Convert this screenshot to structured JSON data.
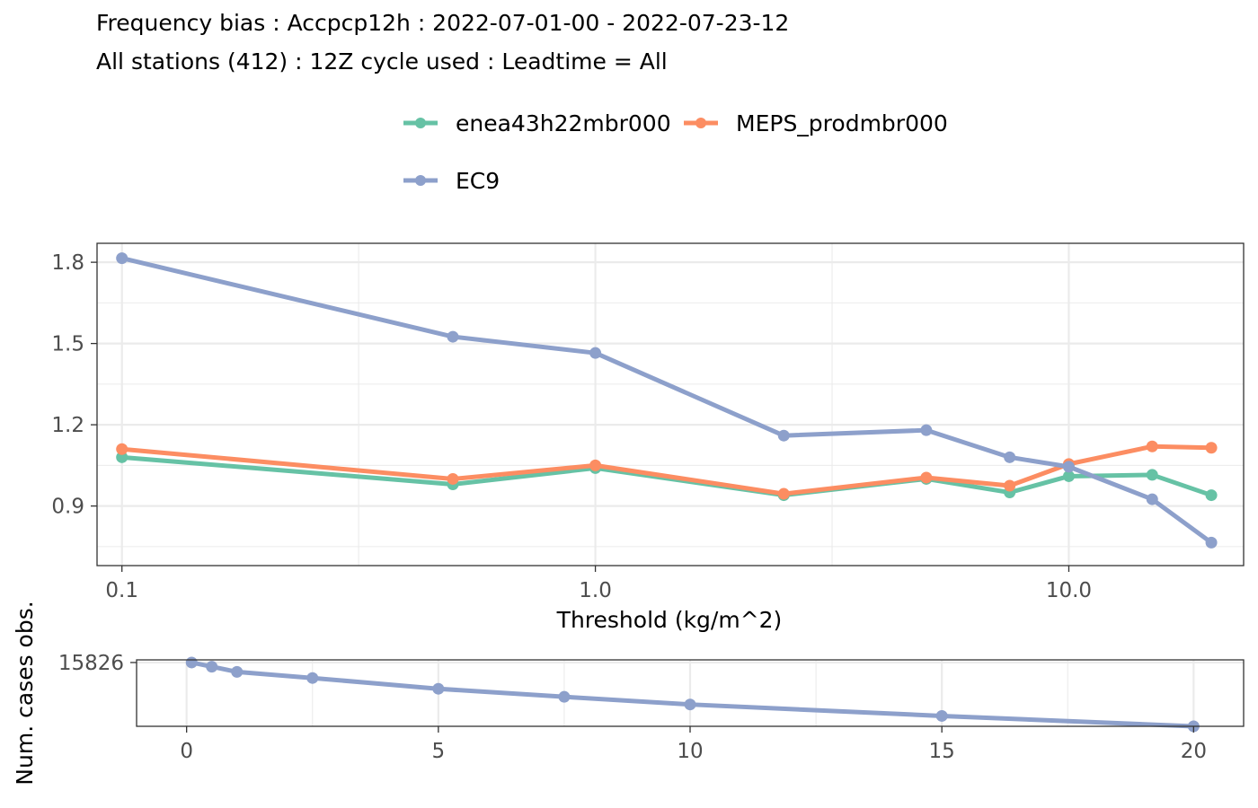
{
  "header": {
    "title_line1": "Frequency bias : Accpcp12h : 2022-07-01-00 - 2022-07-23-12",
    "title_line2": "All stations (412) : 12Z cycle used : Leadtime = All"
  },
  "legend": {
    "items": [
      {
        "label": "enea43h22mbr000",
        "color": "#66C2A5"
      },
      {
        "label": "MEPS_prodmbr000",
        "color": "#FC8D62"
      },
      {
        "label": "EC9",
        "color": "#8DA0CB"
      }
    ]
  },
  "chart_data": [
    {
      "type": "line",
      "xlabel": "Threshold (kg/m^2)",
      "ylabel": "",
      "x_scale": "log10",
      "xlim": [
        0.0886,
        23.4
      ],
      "ylim": [
        0.68,
        1.87
      ],
      "x_ticks": [
        0.1,
        1.0,
        10.0
      ],
      "x_tick_labels": [
        "0.1",
        "1.0",
        "10.0"
      ],
      "y_ticks": [
        0.9,
        1.2,
        1.5,
        1.8
      ],
      "y_tick_labels": [
        "0.9",
        "1.2",
        "1.5",
        "1.8"
      ],
      "grid": true,
      "legend_position": "top",
      "x": [
        0.1,
        0.5,
        1,
        2.5,
        5,
        7.5,
        10,
        15,
        20
      ],
      "series": [
        {
          "name": "enea43h22mbr000",
          "color": "#66C2A5",
          "values": [
            1.08,
            0.98,
            1.04,
            0.94,
            1.0,
            0.95,
            1.01,
            1.015,
            0.94
          ]
        },
        {
          "name": "MEPS_prodmbr000",
          "color": "#FC8D62",
          "values": [
            1.11,
            1.0,
            1.05,
            0.945,
            1.005,
            0.975,
            1.055,
            1.12,
            1.115
          ]
        },
        {
          "name": "EC9",
          "color": "#8DA0CB",
          "values": [
            1.815,
            1.525,
            1.465,
            1.16,
            1.18,
            1.08,
            1.045,
            0.925,
            0.765
          ]
        }
      ]
    },
    {
      "type": "line",
      "xlabel": "",
      "ylabel": "Num. cases obs.",
      "xlim": [
        -0.9935,
        20.9935
      ],
      "ylim": [
        11150,
        16020
      ],
      "x_ticks": [
        0,
        5,
        10,
        15,
        20
      ],
      "x_tick_labels": [
        "0",
        "5",
        "10",
        "15",
        "20"
      ],
      "y_ticks": [
        15826
      ],
      "y_tick_labels": [
        "15826"
      ],
      "grid": true,
      "x": [
        0.1,
        0.5,
        1,
        2.5,
        5,
        7.5,
        10,
        15,
        20
      ],
      "series": [
        {
          "color": "#8DA0CB",
          "values": [
            15826,
            15520,
            15140,
            14690,
            13900,
            13310,
            12750,
            11910,
            11150
          ]
        }
      ]
    }
  ]
}
